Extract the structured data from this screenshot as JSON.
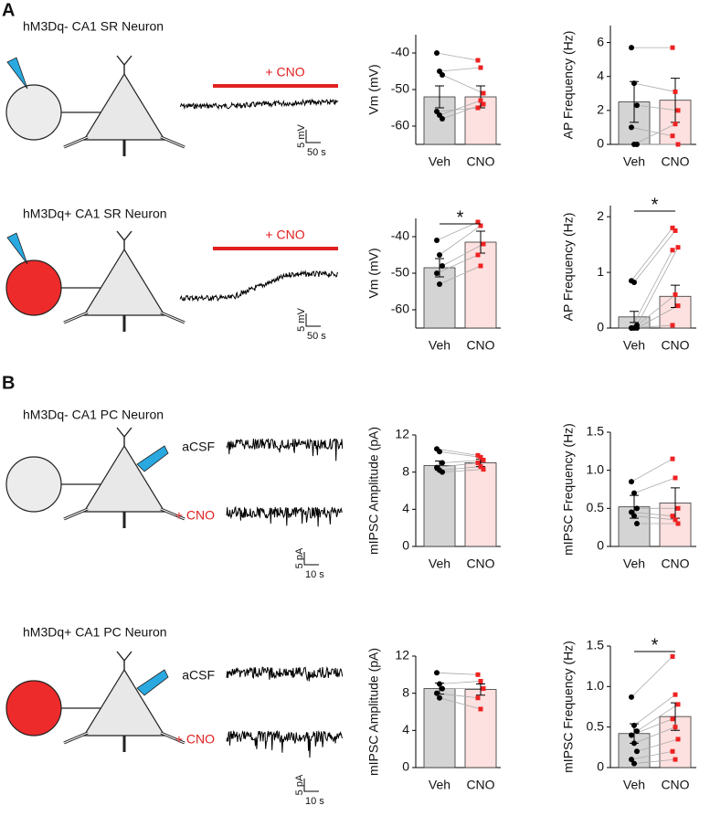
{
  "panels": [
    "A",
    "B"
  ],
  "rows": [
    {
      "title": "hM3Dq- CA1 SR Neuron",
      "drug_bar": "+ CNO",
      "scale_y": "5 mV",
      "scale_x": "50 s"
    },
    {
      "title": "hM3Dq+ CA1 SR Neuron",
      "drug_bar": "+ CNO",
      "scale_y": "5 mV",
      "scale_x": "50 s"
    },
    {
      "title": "hM3Dq- CA1 PC Neuron",
      "trace_labels": [
        "aCSF",
        "+ CNO"
      ],
      "scale_y": "5 pA",
      "scale_x": "10 s"
    },
    {
      "title": "hM3Dq+ CA1 PC Neuron",
      "trace_labels": [
        "aCSF",
        "+ CNO"
      ],
      "scale_y": "5 pA",
      "scale_x": "10 s"
    }
  ],
  "chart_data": [
    {
      "type": "bar",
      "ylabel": "Vm (mV)",
      "categories": [
        "Veh",
        "CNO"
      ],
      "values": [
        -52,
        -52
      ],
      "errors": [
        3,
        3
      ],
      "points": [
        [
          -40,
          -45,
          -46,
          -56,
          -57,
          -58
        ],
        [
          -42,
          -44,
          -51,
          -55,
          -53,
          -54
        ]
      ],
      "bar_colors": [
        "#d4d4d4",
        "#fde0e0"
      ],
      "point_colors": [
        "#000000",
        "#ee2222"
      ],
      "ylim": [
        -65,
        -35
      ],
      "yticks": [
        -40,
        -50,
        -60
      ]
    },
    {
      "type": "bar",
      "ylabel": "AP Frequency (Hz)",
      "categories": [
        "Veh",
        "CNO"
      ],
      "values": [
        2.5,
        2.6
      ],
      "errors": [
        1.2,
        1.3
      ],
      "points": [
        [
          5.7,
          3.6,
          2.3,
          1.0,
          0,
          0
        ],
        [
          5.7,
          3.1,
          2.0,
          0.5,
          1.2,
          0
        ]
      ],
      "bar_colors": [
        "#d4d4d4",
        "#fde0e0"
      ],
      "point_colors": [
        "#000000",
        "#ee2222"
      ],
      "ylim": [
        0,
        7
      ],
      "yticks": [
        0,
        2,
        4,
        6
      ]
    },
    {
      "type": "bar",
      "ylabel": "Vm (mV)",
      "categories": [
        "Veh",
        "CNO"
      ],
      "values": [
        -48.5,
        -41.5
      ],
      "errors": [
        2.5,
        3
      ],
      "points": [
        [
          -41,
          -45,
          -48,
          -50,
          -53
        ],
        [
          -36,
          -37,
          -42,
          -45,
          -48
        ]
      ],
      "bar_colors": [
        "#d4d4d4",
        "#fde0e0"
      ],
      "point_colors": [
        "#000000",
        "#ee2222"
      ],
      "ylim": [
        -65,
        -35
      ],
      "yticks": [
        -40,
        -50,
        -60
      ],
      "significance": "*"
    },
    {
      "type": "bar",
      "ylabel": "AP Frequency (Hz)",
      "categories": [
        "Veh",
        "CNO"
      ],
      "values": [
        0.2,
        0.57
      ],
      "errors": [
        0.1,
        0.2
      ],
      "points": [
        [
          0.85,
          0.82,
          0.05,
          0,
          0,
          0,
          0
        ],
        [
          1.8,
          1.75,
          1.45,
          1.4,
          0.6,
          0.4,
          0.05
        ]
      ],
      "bar_colors": [
        "#d4d4d4",
        "#fde0e0"
      ],
      "point_colors": [
        "#000000",
        "#ee2222"
      ],
      "ylim": [
        0,
        2.2
      ],
      "yticks": [
        0,
        1,
        2
      ],
      "significance": "*"
    },
    {
      "type": "bar",
      "ylabel": "mIPSC Amplitude (pA)",
      "categories": [
        "Veh",
        "CNO"
      ],
      "values": [
        8.7,
        9.0
      ],
      "errors": [
        0.5,
        0.4
      ],
      "points": [
        [
          10.5,
          10.2,
          9,
          8.5,
          8.2,
          8
        ],
        [
          9.8,
          9.6,
          9.3,
          9.0,
          8.6,
          8.3
        ]
      ],
      "bar_colors": [
        "#d4d4d4",
        "#fde0e0"
      ],
      "point_colors": [
        "#000000",
        "#ee2222"
      ],
      "ylim": [
        0,
        12
      ],
      "yticks": [
        0,
        4,
        8,
        12
      ]
    },
    {
      "type": "bar",
      "ylabel": "mIPSC Frequency (Hz)",
      "categories": [
        "Veh",
        "CNO"
      ],
      "values": [
        0.52,
        0.57
      ],
      "errors": [
        0.15,
        0.2
      ],
      "points": [
        [
          0.85,
          0.7,
          0.5,
          0.45,
          0.4,
          0.3
        ],
        [
          1.15,
          0.9,
          0.5,
          0.4,
          0.35,
          0.3
        ]
      ],
      "bar_colors": [
        "#d4d4d4",
        "#fde0e0"
      ],
      "point_colors": [
        "#000000",
        "#ee2222"
      ],
      "ylim": [
        0,
        1.5
      ],
      "yticks": [
        0,
        0.5,
        {
          "value": 1,
          "label": "1.0"
        },
        1.5
      ]
    },
    {
      "type": "bar",
      "ylabel": "mIPSC Amplitude (pA)",
      "categories": [
        "Veh",
        "CNO"
      ],
      "values": [
        8.5,
        8.4
      ],
      "errors": [
        0.6,
        0.6
      ],
      "points": [
        [
          10.2,
          9,
          8.5,
          8,
          7.5
        ],
        [
          10,
          9.3,
          8.5,
          7.5,
          6.3
        ]
      ],
      "bar_colors": [
        "#d4d4d4",
        "#fde0e0"
      ],
      "point_colors": [
        "#000000",
        "#ee2222"
      ],
      "ylim": [
        0,
        12
      ],
      "yticks": [
        0,
        4,
        8,
        12
      ]
    },
    {
      "type": "bar",
      "ylabel": "mIPSC Frequency (Hz)",
      "categories": [
        "Veh",
        "CNO"
      ],
      "values": [
        0.42,
        0.63
      ],
      "errors": [
        0.12,
        0.17
      ],
      "points": [
        [
          0.87,
          0.52,
          0.45,
          0.4,
          0.3,
          0.2,
          0.1,
          0.05
        ],
        [
          1.37,
          0.9,
          0.78,
          0.6,
          0.5,
          0.35,
          0.2,
          0.1
        ]
      ],
      "bar_colors": [
        "#d4d4d4",
        "#fde0e0"
      ],
      "point_colors": [
        "#000000",
        "#ee2222"
      ],
      "ylim": [
        0,
        1.5
      ],
      "yticks": [
        0,
        0.5,
        {
          "value": 1,
          "label": "1.0"
        },
        1.5
      ],
      "significance": "*"
    }
  ]
}
